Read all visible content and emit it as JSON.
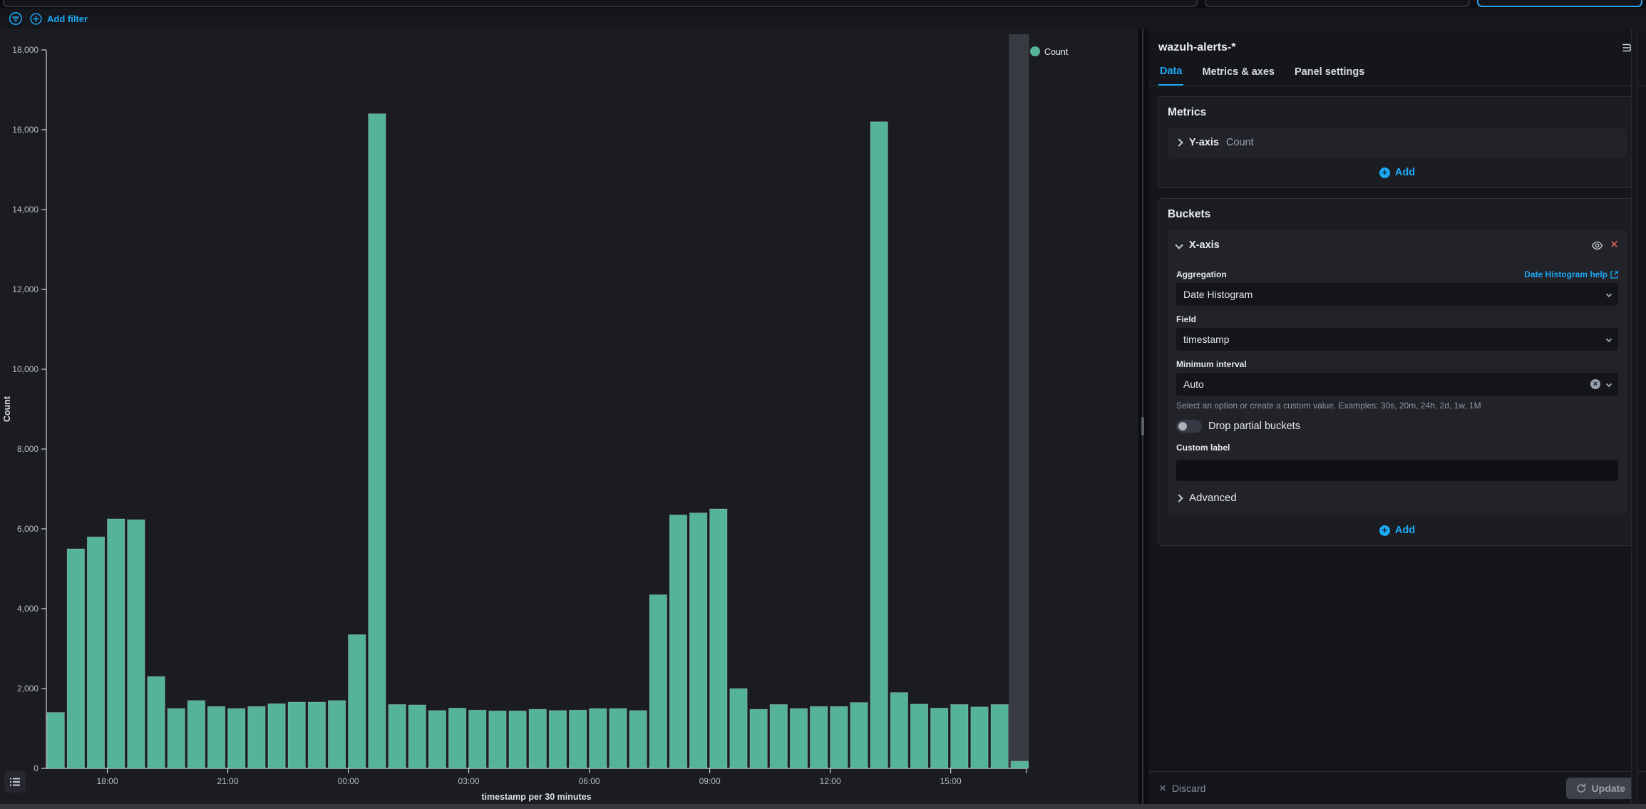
{
  "filter_bar": {
    "add_filter_label": "Add filter"
  },
  "panel": {
    "title": "wazuh-alerts-*",
    "tabs": [
      {
        "label": "Data",
        "active": true
      },
      {
        "label": "Metrics & axes",
        "active": false
      },
      {
        "label": "Panel settings",
        "active": false
      }
    ],
    "metrics": {
      "heading": "Metrics",
      "row": {
        "label": "Y-axis",
        "value": "Count"
      },
      "add_label": "Add"
    },
    "buckets": {
      "heading": "Buckets",
      "xaxis": {
        "title": "X-axis",
        "aggregation_label": "Aggregation",
        "aggregation_help_label": "Date Histogram help",
        "aggregation_value": "Date Histogram",
        "field_label": "Field",
        "field_value": "timestamp",
        "min_interval_label": "Minimum interval",
        "min_interval_value": "Auto",
        "min_interval_help": "Select an option or create a custom value. Examples: 30s, 20m, 24h, 2d, 1w, 1M",
        "drop_partial_label": "Drop partial buckets",
        "drop_partial_state": "off",
        "custom_label_label": "Custom label",
        "custom_label_value": "",
        "advanced_label": "Advanced"
      },
      "add_label": "Add"
    },
    "footer": {
      "discard_label": "Discard",
      "update_label": "Update"
    }
  },
  "colors": {
    "accent": "#1BA9F5",
    "bar": "#54B399",
    "danger": "#F86B63",
    "hover_band": "#383b41"
  },
  "chart_data": {
    "type": "bar",
    "title": "",
    "xlabel": "timestamp per 30 minutes",
    "ylabel": "Count",
    "legend": [
      {
        "label": "Count",
        "color": "#54B399"
      }
    ],
    "legend_position": "top-right",
    "grid": false,
    "ylim": [
      0,
      18000
    ],
    "y_tick_step": 2000,
    "x_tick_labels": [
      "18:00",
      "21:00",
      "00:00",
      "03:00",
      "06:00",
      "09:00",
      "12:00",
      "15:00"
    ],
    "bucket_interval": "30m",
    "x_times": [
      "16:30",
      "17:00",
      "17:30",
      "18:00",
      "18:30",
      "19:00",
      "19:30",
      "20:00",
      "20:30",
      "21:00",
      "21:30",
      "22:00",
      "22:30",
      "23:00",
      "23:30",
      "00:00",
      "00:30",
      "01:00",
      "01:30",
      "02:00",
      "02:30",
      "03:00",
      "03:30",
      "04:00",
      "04:30",
      "05:00",
      "05:30",
      "06:00",
      "06:30",
      "07:00",
      "07:30",
      "08:00",
      "08:30",
      "09:00",
      "09:30",
      "10:00",
      "10:30",
      "11:00",
      "11:30",
      "12:00",
      "12:30",
      "13:00",
      "13:30",
      "14:00",
      "14:30",
      "15:00",
      "15:30",
      "16:00",
      "16:30"
    ],
    "values": [
      1400,
      5500,
      5800,
      6250,
      6230,
      2300,
      1500,
      1700,
      1550,
      1500,
      1550,
      1620,
      1660,
      1660,
      1700,
      3350,
      16400,
      1600,
      1590,
      1450,
      1510,
      1460,
      1440,
      1440,
      1480,
      1450,
      1460,
      1500,
      1500,
      1450,
      4350,
      6350,
      6400,
      6500,
      2000,
      1480,
      1600,
      1500,
      1550,
      1550,
      1650,
      16200,
      1900,
      1610,
      1510,
      1600,
      1540,
      1600,
      180
    ],
    "highlight_bucket_index": 48
  }
}
